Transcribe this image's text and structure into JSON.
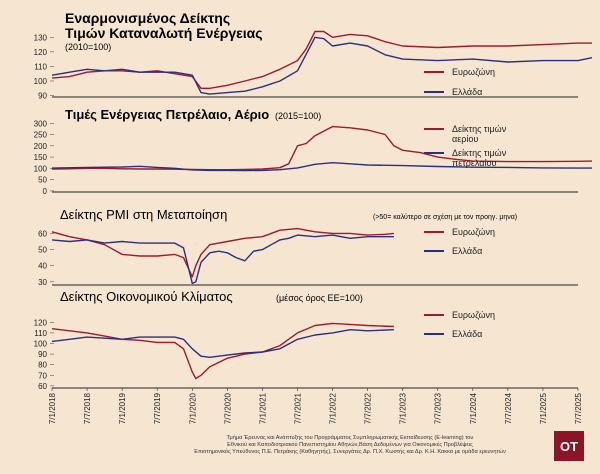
{
  "colors": {
    "eurozone": "#9b1b30",
    "greece": "#2b2f7f",
    "background": "#f6e6d1"
  },
  "x_dates": [
    "7/1/2018",
    "7/7/2018",
    "7/1/2019",
    "7/7/2019",
    "7/1/2020",
    "7/7/2020",
    "7/1/2021",
    "7/7/2021",
    "7/1/2022",
    "7/7/2022",
    "7/1/2023",
    "7/7/2023",
    "7/1/2024",
    "7/7/2024",
    "7/1/2025",
    "7/7/2025"
  ],
  "chart_data": [
    {
      "id": "hicp",
      "type": "line",
      "title": "Εναρμονισμένος Δείκτης Τιμών Καταναλωτή Ενέργειας",
      "title_line1": "Εναρμονισμένος Δείκτης",
      "title_line2": "Τιμών Καταναλωτή Ενέργειας",
      "subtitle": "(2010=100)",
      "y_ticks": [
        90,
        100,
        110,
        120,
        130
      ],
      "ylim": [
        89,
        135
      ],
      "series": [
        {
          "name": "Ευρωζώνη",
          "color": "#9b1b30",
          "points": [
            [
              0,
              102
            ],
            [
              0.5,
              103
            ],
            [
              1,
              106
            ],
            [
              1.5,
              107
            ],
            [
              2,
              107
            ],
            [
              2.5,
              106
            ],
            [
              3,
              107
            ],
            [
              3.5,
              105
            ],
            [
              4,
              103
            ],
            [
              4.25,
              95
            ],
            [
              4.5,
              95
            ],
            [
              5,
              97
            ],
            [
              5.5,
              100
            ],
            [
              6,
              103
            ],
            [
              6.5,
              108
            ],
            [
              7,
              114
            ],
            [
              7.25,
              122
            ],
            [
              7.5,
              134
            ],
            [
              7.75,
              134
            ],
            [
              8,
              130
            ],
            [
              8.5,
              132
            ],
            [
              9,
              131
            ],
            [
              9.5,
              127
            ],
            [
              10,
              124
            ],
            [
              11,
              123
            ],
            [
              12,
              124
            ],
            [
              13,
              124
            ],
            [
              14,
              125
            ],
            [
              15,
              126
            ],
            [
              15.4,
              126
            ]
          ]
        },
        {
          "name": "Ελλάδα",
          "color": "#2b2f7f",
          "points": [
            [
              0,
              104
            ],
            [
              0.5,
              106
            ],
            [
              1,
              108
            ],
            [
              1.5,
              107
            ],
            [
              2,
              108
            ],
            [
              2.5,
              106
            ],
            [
              3,
              106
            ],
            [
              3.5,
              106
            ],
            [
              4,
              104
            ],
            [
              4.25,
              92
            ],
            [
              4.5,
              91
            ],
            [
              5,
              92
            ],
            [
              5.5,
              93
            ],
            [
              6,
              96
            ],
            [
              6.5,
              100
            ],
            [
              7,
              107
            ],
            [
              7.5,
              130
            ],
            [
              7.75,
              129
            ],
            [
              8,
              124
            ],
            [
              8.5,
              126
            ],
            [
              9,
              124
            ],
            [
              9.5,
              118
            ],
            [
              10,
              115
            ],
            [
              11,
              114
            ],
            [
              12,
              115
            ],
            [
              13,
              113
            ],
            [
              14,
              114
            ],
            [
              15,
              114
            ],
            [
              15.4,
              116
            ]
          ]
        }
      ],
      "legend": [
        "Ευρωζώνη",
        "Ελλάδα"
      ]
    },
    {
      "id": "energy",
      "type": "line",
      "title": "Τιμές Ενέργειας Πετρέλαιο, Αέριο",
      "subtitle": "(2015=100)",
      "y_ticks": [
        0,
        50,
        100,
        150,
        200,
        250,
        300
      ],
      "ylim": [
        -5,
        310
      ],
      "series": [
        {
          "name": "Δείκτης τιμών αερίου",
          "color": "#9b1b30",
          "points": [
            [
              0,
              97
            ],
            [
              0.5,
              98
            ],
            [
              1,
              100
            ],
            [
              1.5,
              100
            ],
            [
              2,
              98
            ],
            [
              2.5,
              97
            ],
            [
              3,
              97
            ],
            [
              3.5,
              96
            ],
            [
              4,
              95
            ],
            [
              4.5,
              94
            ],
            [
              5,
              94
            ],
            [
              5.5,
              95
            ],
            [
              6,
              97
            ],
            [
              6.5,
              103
            ],
            [
              6.75,
              120
            ],
            [
              7,
              200
            ],
            [
              7.25,
              210
            ],
            [
              7.5,
              245
            ],
            [
              7.75,
              265
            ],
            [
              8,
              285
            ],
            [
              8.5,
              280
            ],
            [
              9,
              270
            ],
            [
              9.5,
              250
            ],
            [
              9.75,
              200
            ],
            [
              10,
              180
            ],
            [
              10.5,
              170
            ],
            [
              11,
              150
            ],
            [
              11.5,
              140
            ],
            [
              12,
              132
            ],
            [
              13,
              130
            ],
            [
              14,
              130
            ],
            [
              15,
              131
            ],
            [
              15.4,
              132
            ]
          ]
        },
        {
          "name": "Δείκτης τιμών πετρελαίου",
          "color": "#2b2f7f",
          "points": [
            [
              0,
              101
            ],
            [
              1,
              104
            ],
            [
              2,
              106
            ],
            [
              2.5,
              109
            ],
            [
              3,
              104
            ],
            [
              3.5,
              100
            ],
            [
              4,
              93
            ],
            [
              4.5,
              91
            ],
            [
              5,
              91
            ],
            [
              5.5,
              90
            ],
            [
              6,
              91
            ],
            [
              6.5,
              94
            ],
            [
              7,
              102
            ],
            [
              7.5,
              118
            ],
            [
              8,
              125
            ],
            [
              8.5,
              120
            ],
            [
              9,
              115
            ],
            [
              10,
              112
            ],
            [
              11,
              108
            ],
            [
              12,
              105
            ],
            [
              13,
              104
            ],
            [
              14,
              102
            ],
            [
              15,
              101
            ],
            [
              15.4,
              101
            ]
          ]
        }
      ],
      "legend": [
        "Δείκτης τιμών αερίου",
        "Δείκτης τιμών πετρελαίου"
      ]
    },
    {
      "id": "pmi",
      "type": "line",
      "title": "Δείκτης PMI στη Μεταποίηση",
      "note": "(>50= καλύτερο σε σχέση με τον προηγ. μηνα)",
      "y_ticks": [
        30,
        40,
        50,
        60
      ],
      "ylim": [
        28,
        64
      ],
      "series": [
        {
          "name": "Ευρωζώνη",
          "color": "#9b1b30",
          "points": [
            [
              0,
              61
            ],
            [
              0.5,
              58
            ],
            [
              1,
              56
            ],
            [
              1.5,
              53
            ],
            [
              2,
              47
            ],
            [
              2.5,
              46
            ],
            [
              3,
              46
            ],
            [
              3.5,
              47
            ],
            [
              3.75,
              45
            ],
            [
              4,
              33
            ],
            [
              4.1,
              40
            ],
            [
              4.25,
              47
            ],
            [
              4.5,
              53
            ],
            [
              5,
              55
            ],
            [
              5.5,
              57
            ],
            [
              6,
              58
            ],
            [
              6.5,
              62
            ],
            [
              7,
              63
            ],
            [
              7.5,
              61
            ],
            [
              8,
              60
            ],
            [
              8.5,
              60
            ],
            [
              9,
              59
            ],
            [
              9.5,
              59.5
            ],
            [
              9.75,
              60
            ]
          ]
        },
        {
          "name": "Ελλάδα",
          "color": "#2b2f7f",
          "points": [
            [
              0,
              56
            ],
            [
              0.5,
              55
            ],
            [
              1,
              56
            ],
            [
              1.5,
              54
            ],
            [
              2,
              55
            ],
            [
              2.5,
              54
            ],
            [
              3,
              54
            ],
            [
              3.5,
              54
            ],
            [
              3.75,
              51
            ],
            [
              4,
              29
            ],
            [
              4.1,
              30
            ],
            [
              4.25,
              42
            ],
            [
              4.5,
              48
            ],
            [
              4.75,
              49
            ],
            [
              5,
              48
            ],
            [
              5.25,
              45
            ],
            [
              5.5,
              43
            ],
            [
              5.75,
              49
            ],
            [
              6,
              50
            ],
            [
              6.25,
              53
            ],
            [
              6.5,
              56
            ],
            [
              6.75,
              57
            ],
            [
              7,
              59
            ],
            [
              7.5,
              58
            ],
            [
              8,
              59
            ],
            [
              8.5,
              57
            ],
            [
              9,
              58
            ],
            [
              9.5,
              58
            ],
            [
              9.75,
              58
            ]
          ]
        }
      ],
      "legend": [
        "Ευρωζώνη",
        "Ελλάδα"
      ]
    },
    {
      "id": "esi",
      "type": "line",
      "title": "Δείκτης Οικονομικού Κλίματος",
      "subtitle": "(μέσος όρος ΕΕ=100)",
      "y_ticks": [
        60,
        70,
        80,
        90,
        100,
        110,
        120
      ],
      "ylim": [
        58,
        125
      ],
      "series": [
        {
          "name": "Ευρωζώνη",
          "color": "#9b1b30",
          "points": [
            [
              0,
              114
            ],
            [
              0.5,
              112
            ],
            [
              1,
              110
            ],
            [
              1.5,
              107
            ],
            [
              2,
              104
            ],
            [
              2.5,
              103
            ],
            [
              3,
              101
            ],
            [
              3.5,
              101
            ],
            [
              3.75,
              95
            ],
            [
              4,
              73
            ],
            [
              4.1,
              67
            ],
            [
              4.25,
              70
            ],
            [
              4.5,
              78
            ],
            [
              5,
              86
            ],
            [
              5.5,
              90
            ],
            [
              6,
              92
            ],
            [
              6.5,
              98
            ],
            [
              7,
              110
            ],
            [
              7.5,
              117
            ],
            [
              8,
              119
            ],
            [
              8.5,
              118
            ],
            [
              9,
              117
            ],
            [
              9.75,
              116
            ]
          ]
        },
        {
          "name": "Ελλάδα",
          "color": "#2b2f7f",
          "points": [
            [
              0,
              102
            ],
            [
              0.5,
              104
            ],
            [
              1,
              106
            ],
            [
              1.5,
              105
            ],
            [
              2,
              104
            ],
            [
              2.5,
              106
            ],
            [
              3,
              106
            ],
            [
              3.5,
              106
            ],
            [
              3.75,
              104
            ],
            [
              4,
              95
            ],
            [
              4.25,
              88
            ],
            [
              4.5,
              87
            ],
            [
              5,
              89
            ],
            [
              5.5,
              91
            ],
            [
              6,
              92
            ],
            [
              6.5,
              95
            ],
            [
              7,
              104
            ],
            [
              7.5,
              108
            ],
            [
              8,
              110
            ],
            [
              8.5,
              113
            ],
            [
              9,
              112
            ],
            [
              9.75,
              113
            ]
          ]
        }
      ],
      "legend": [
        "Ευρωζώνη",
        "Ελλάδα"
      ]
    }
  ],
  "credits": [
    "Τμήμα Έρευνας και Ανάπτυξης του Προγράμματος Συμπληρωματικής Εκπαίδευσης (E-learning) του",
    "Εθνικού και Καποδιστριακού Πανεπιστημίου Αθηνών,Βάση Δεδομένων για Οικονομικές Προβλέψεις",
    "Επιστημονικός Υπεύθυνος Π.Ε. Πετράκης (Καθηγητής), Συνεργάτες Δρ. Π.Χ. Κωστής και Δρ. Κ.Η. Κακκα με ομάδα ερευνητών"
  ],
  "logo": "ΟΤ"
}
